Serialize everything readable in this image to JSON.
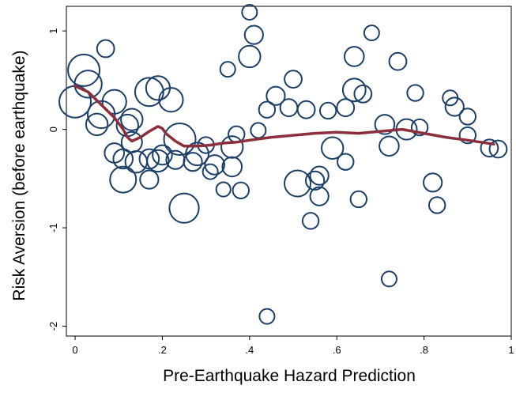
{
  "chart_data": {
    "type": "scatter",
    "xlabel": "Pre-Earthquake Hazard Prediction",
    "ylabel": "Risk Aversion (before earthquake)",
    "xlim": [
      -0.02,
      1.0
    ],
    "ylim": [
      -2.1,
      1.25
    ],
    "x_ticks": [
      0,
      0.2,
      0.4,
      0.6,
      0.8,
      1
    ],
    "x_tick_labels": [
      "0",
      ".2",
      ".4",
      ".6",
      ".8",
      "1"
    ],
    "y_ticks": [
      -2,
      -1,
      0,
      1
    ],
    "y_tick_labels": [
      "-2",
      "-1",
      "0",
      "1"
    ],
    "grid": false,
    "marker_style": "hollow circles sized by weight",
    "colors": {
      "markers": "#1b3f66",
      "fit_line": "#8b2f3c"
    },
    "series": [
      {
        "type": "weighted-scatter",
        "points": [
          {
            "x": 0.4,
            "y": 1.19,
            "size": 0.25
          },
          {
            "x": 0.68,
            "y": 0.98,
            "size": 0.25
          },
          {
            "x": 0.41,
            "y": 0.96,
            "size": 0.4
          },
          {
            "x": 0.07,
            "y": 0.82,
            "size": 0.35
          },
          {
            "x": 0.4,
            "y": 0.74,
            "size": 0.55
          },
          {
            "x": 0.64,
            "y": 0.74,
            "size": 0.45
          },
          {
            "x": 0.74,
            "y": 0.69,
            "size": 0.35
          },
          {
            "x": 0.35,
            "y": 0.61,
            "size": 0.25
          },
          {
            "x": 0.02,
            "y": 0.6,
            "size": 1.0
          },
          {
            "x": 0.5,
            "y": 0.51,
            "size": 0.35
          },
          {
            "x": 0.03,
            "y": 0.46,
            "size": 0.8
          },
          {
            "x": 0.19,
            "y": 0.42,
            "size": 0.65
          },
          {
            "x": 0.17,
            "y": 0.38,
            "size": 0.85
          },
          {
            "x": 0.64,
            "y": 0.4,
            "size": 0.6
          },
          {
            "x": 0.66,
            "y": 0.36,
            "size": 0.35
          },
          {
            "x": 0.78,
            "y": 0.37,
            "size": 0.3
          },
          {
            "x": 0.46,
            "y": 0.34,
            "size": 0.4
          },
          {
            "x": 0.86,
            "y": 0.32,
            "size": 0.25
          },
          {
            "x": 0.0,
            "y": 0.28,
            "size": 1.0
          },
          {
            "x": 0.09,
            "y": 0.28,
            "size": 0.65
          },
          {
            "x": 0.22,
            "y": 0.3,
            "size": 0.65
          },
          {
            "x": 0.62,
            "y": 0.22,
            "size": 0.35
          },
          {
            "x": 0.87,
            "y": 0.23,
            "size": 0.4
          },
          {
            "x": 0.49,
            "y": 0.22,
            "size": 0.35
          },
          {
            "x": 0.53,
            "y": 0.2,
            "size": 0.35
          },
          {
            "x": 0.58,
            "y": 0.19,
            "size": 0.3
          },
          {
            "x": 0.44,
            "y": 0.2,
            "size": 0.3
          },
          {
            "x": 0.06,
            "y": 0.15,
            "size": 0.8
          },
          {
            "x": 0.13,
            "y": 0.1,
            "size": 0.55
          },
          {
            "x": 0.9,
            "y": 0.13,
            "size": 0.3
          },
          {
            "x": 0.05,
            "y": 0.05,
            "size": 0.55
          },
          {
            "x": 0.12,
            "y": 0.04,
            "size": 0.55
          },
          {
            "x": 0.71,
            "y": 0.05,
            "size": 0.45
          },
          {
            "x": 0.79,
            "y": 0.02,
            "size": 0.3
          },
          {
            "x": 0.42,
            "y": -0.01,
            "size": 0.25
          },
          {
            "x": 0.76,
            "y": 0.0,
            "size": 0.5
          },
          {
            "x": 0.37,
            "y": -0.05,
            "size": 0.3
          },
          {
            "x": 0.9,
            "y": -0.06,
            "size": 0.3
          },
          {
            "x": 0.24,
            "y": -0.1,
            "size": 1.0
          },
          {
            "x": 0.13,
            "y": -0.13,
            "size": 0.5
          },
          {
            "x": 0.3,
            "y": -0.16,
            "size": 0.3
          },
          {
            "x": 0.72,
            "y": -0.17,
            "size": 0.45
          },
          {
            "x": 0.59,
            "y": -0.19,
            "size": 0.55
          },
          {
            "x": 0.36,
            "y": -0.18,
            "size": 0.55
          },
          {
            "x": 0.95,
            "y": -0.19,
            "size": 0.35
          },
          {
            "x": 0.97,
            "y": -0.2,
            "size": 0.35
          },
          {
            "x": 0.28,
            "y": -0.25,
            "size": 0.6
          },
          {
            "x": 0.09,
            "y": -0.24,
            "size": 0.45
          },
          {
            "x": 0.2,
            "y": -0.26,
            "size": 0.45
          },
          {
            "x": 0.17,
            "y": -0.3,
            "size": 0.45
          },
          {
            "x": 0.11,
            "y": -0.3,
            "size": 0.45
          },
          {
            "x": 0.19,
            "y": -0.32,
            "size": 0.55
          },
          {
            "x": 0.14,
            "y": -0.33,
            "size": 0.55
          },
          {
            "x": 0.23,
            "y": -0.31,
            "size": 0.4
          },
          {
            "x": 0.27,
            "y": -0.33,
            "size": 0.4
          },
          {
            "x": 0.62,
            "y": -0.33,
            "size": 0.3
          },
          {
            "x": 0.32,
            "y": -0.36,
            "size": 0.45
          },
          {
            "x": 0.36,
            "y": -0.38,
            "size": 0.45
          },
          {
            "x": 0.31,
            "y": -0.43,
            "size": 0.25
          },
          {
            "x": 0.56,
            "y": -0.47,
            "size": 0.4
          },
          {
            "x": 0.17,
            "y": -0.51,
            "size": 0.4
          },
          {
            "x": 0.11,
            "y": -0.51,
            "size": 0.75
          },
          {
            "x": 0.51,
            "y": -0.55,
            "size": 0.75
          },
          {
            "x": 0.55,
            "y": -0.52,
            "size": 0.4
          },
          {
            "x": 0.82,
            "y": -0.54,
            "size": 0.4
          },
          {
            "x": 0.34,
            "y": -0.61,
            "size": 0.22
          },
          {
            "x": 0.38,
            "y": -0.62,
            "size": 0.3
          },
          {
            "x": 0.56,
            "y": -0.68,
            "size": 0.4
          },
          {
            "x": 0.65,
            "y": -0.71,
            "size": 0.3
          },
          {
            "x": 0.83,
            "y": -0.77,
            "size": 0.3
          },
          {
            "x": 0.25,
            "y": -0.8,
            "size": 0.9
          },
          {
            "x": 0.54,
            "y": -0.93,
            "size": 0.3
          },
          {
            "x": 0.72,
            "y": -1.52,
            "size": 0.25
          },
          {
            "x": 0.44,
            "y": -1.9,
            "size": 0.25
          }
        ]
      },
      {
        "type": "line",
        "points": [
          [
            0.0,
            0.44
          ],
          [
            0.03,
            0.38
          ],
          [
            0.06,
            0.25
          ],
          [
            0.09,
            0.12
          ],
          [
            0.11,
            0.0
          ],
          [
            0.12,
            -0.08
          ],
          [
            0.13,
            -0.12
          ],
          [
            0.15,
            -0.08
          ],
          [
            0.17,
            -0.02
          ],
          [
            0.19,
            0.03
          ],
          [
            0.2,
            0.01
          ],
          [
            0.21,
            -0.05
          ],
          [
            0.23,
            -0.12
          ],
          [
            0.25,
            -0.17
          ],
          [
            0.28,
            -0.17
          ],
          [
            0.31,
            -0.16
          ],
          [
            0.34,
            -0.14
          ],
          [
            0.37,
            -0.13
          ],
          [
            0.4,
            -0.11
          ],
          [
            0.45,
            -0.08
          ],
          [
            0.5,
            -0.06
          ],
          [
            0.55,
            -0.04
          ],
          [
            0.6,
            -0.03
          ],
          [
            0.65,
            -0.04
          ],
          [
            0.7,
            -0.02
          ],
          [
            0.75,
            0.0
          ],
          [
            0.8,
            -0.04
          ],
          [
            0.85,
            -0.08
          ],
          [
            0.9,
            -0.11
          ],
          [
            0.96,
            -0.15
          ]
        ]
      }
    ]
  }
}
